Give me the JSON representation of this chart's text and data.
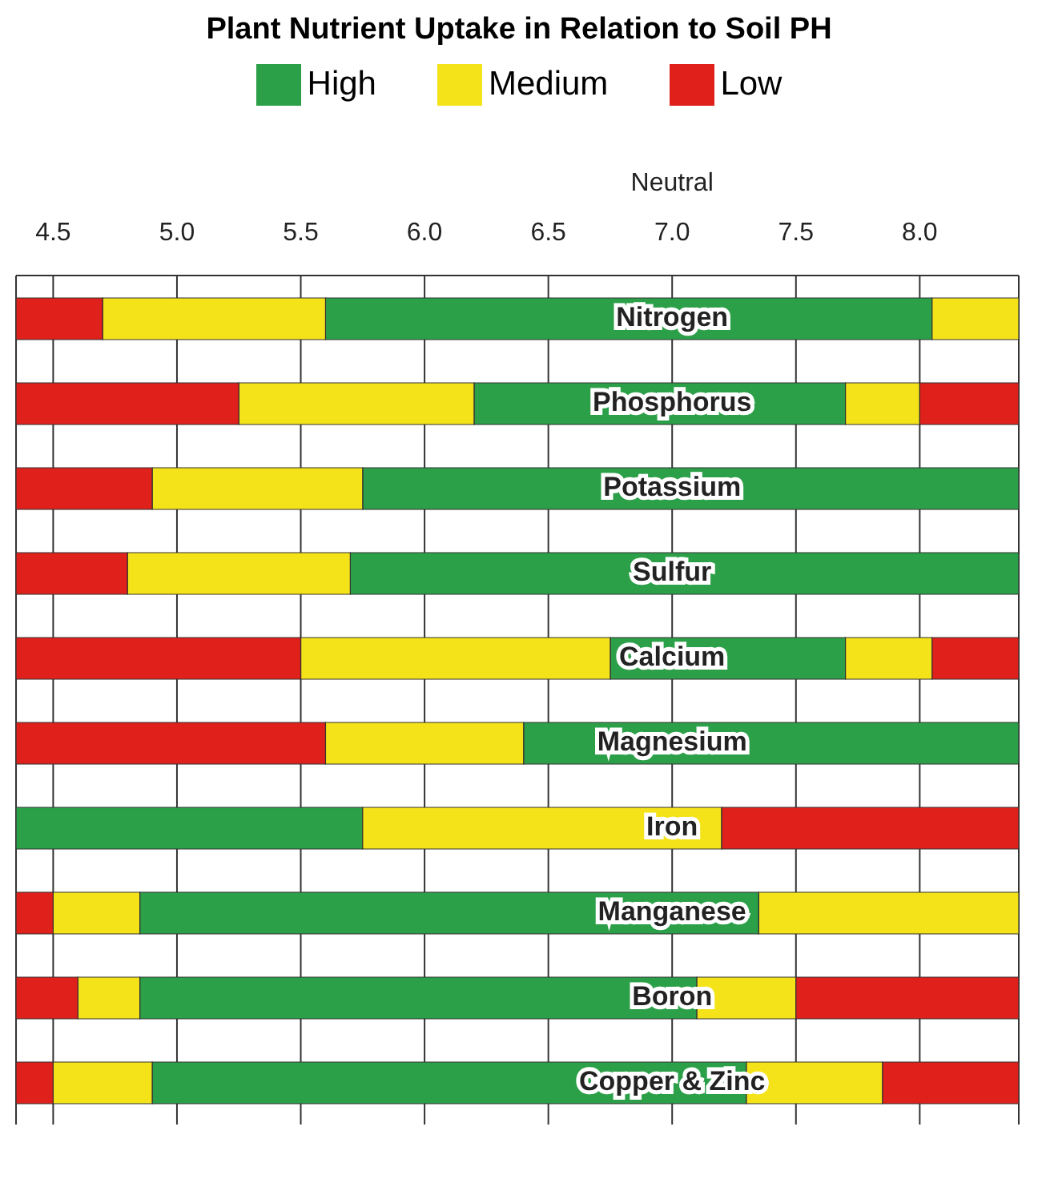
{
  "chart_data": {
    "type": "bar",
    "orientation": "horizontal",
    "title": "Plant Nutrient Uptake in Relation to Soil PH",
    "categories": [
      "Nitrogen",
      "Phosphorus",
      "Potassium",
      "Sulfur",
      "Calcium",
      "Magnesium",
      "Iron",
      "Manganese",
      "Boron",
      "Copper & Zinc"
    ],
    "series": [
      {
        "name": "High",
        "color": "#2ca048",
        "base": [
          5.6,
          6.2,
          5.75,
          5.7,
          6.75,
          6.4,
          4.35,
          4.85,
          4.85,
          4.9
        ],
        "values": [
          2.45,
          1.5,
          2.65,
          2.7,
          0.95,
          2.0,
          1.4,
          2.5,
          2.25,
          2.4
        ]
      },
      {
        "name": "Medium",
        "color": "#f5e31a",
        "base": [
          4.7,
          5.25,
          4.9,
          4.8,
          5.5,
          5.6,
          null,
          4.5,
          4.6,
          4.5
        ],
        "values": [
          0.9,
          0.95,
          0.85,
          0.9,
          1.25,
          0.8,
          null,
          0.35,
          0.25,
          0.4
        ]
      },
      {
        "name": "Low",
        "color": "#e0201b",
        "base": [
          4.35,
          4.35,
          4.35,
          4.35,
          4.35,
          4.35,
          null,
          4.35,
          4.35,
          4.35
        ],
        "values": [
          0.35,
          0.9,
          0.55,
          0.45,
          1.15,
          1.25,
          null,
          0.15,
          0.25,
          0.15
        ]
      },
      {
        "color": "#f5e31a",
        "base": [
          8.05,
          7.7,
          null,
          null,
          7.7,
          null,
          5.75,
          7.35,
          7.1,
          7.3
        ],
        "values": [
          0.35,
          0.3,
          null,
          null,
          0.35,
          null,
          1.45,
          1.05,
          0.4,
          0.55
        ]
      },
      {
        "color": "#e0201b",
        "base": [
          null,
          8.0,
          null,
          null,
          8.05,
          null,
          7.2,
          null,
          7.5,
          7.85
        ],
        "values": [
          null,
          0.4,
          null,
          null,
          0.35,
          null,
          1.2,
          null,
          0.9,
          0.55
        ]
      }
    ],
    "xlim": [
      4.35,
      8.4
    ],
    "xticks": [
      4.5,
      {
        "value": 5,
        "label": "5.0"
      },
      5.5,
      {
        "value": 6,
        "label": "6.0"
      },
      6.5,
      {
        "value": 7,
        "label": "7.0"
      },
      7.5,
      {
        "value": 8,
        "label": "8.0"
      }
    ],
    "annotations": [
      "Neutral"
    ],
    "grid": "x",
    "legend": "top"
  }
}
